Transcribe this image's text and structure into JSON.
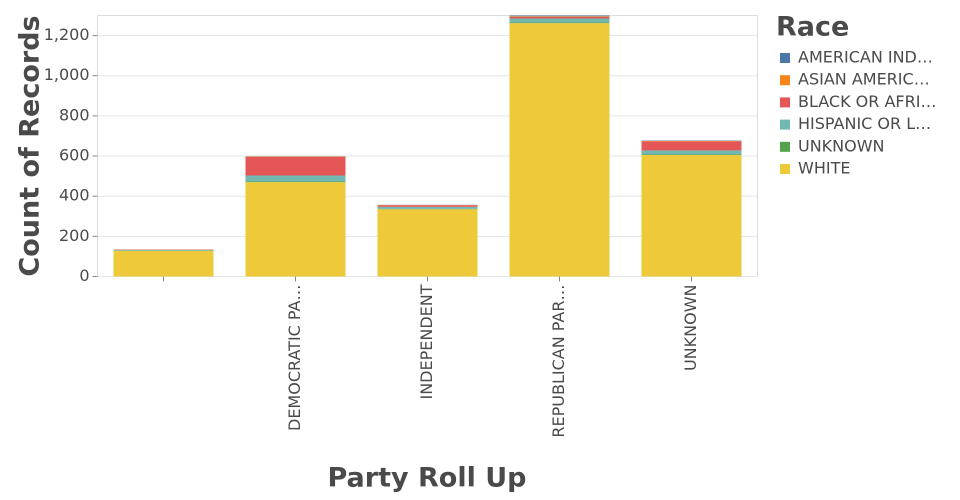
{
  "chart_data": {
    "type": "stacked_bar",
    "x_label": "Party Roll Up",
    "y_label": "Count of Records",
    "legend_title": "Race",
    "categories": [
      null,
      "DEMOCRATIC PA…",
      "INDEPENDENT",
      "REPUBLICAN PAR…",
      "UNKNOWN"
    ],
    "series": [
      {
        "name": "AMERICAN IND…",
        "color": "#4c78a8",
        "values": [
          0,
          1,
          1,
          4,
          2
        ]
      },
      {
        "name": "ASIAN AMERIC…",
        "color": "#f58518",
        "values": [
          0,
          2,
          1,
          3,
          2
        ]
      },
      {
        "name": "BLACK OR AFRI…",
        "color": "#e45756",
        "values": [
          2,
          93,
          8,
          8,
          45
        ]
      },
      {
        "name": "HISPANIC OR L…",
        "color": "#72b7b2",
        "values": [
          4,
          30,
          10,
          20,
          20
        ]
      },
      {
        "name": "UNKNOWN",
        "color": "#54a24b",
        "values": [
          1,
          3,
          2,
          3,
          3
        ]
      },
      {
        "name": "WHITE",
        "color": "#eeca3b",
        "values": [
          128,
          470,
          335,
          1262,
          605
        ]
      }
    ],
    "ylim": [
      0,
      1300
    ],
    "yticks": [
      0,
      200,
      400,
      600,
      800,
      {
        "value": 1000,
        "label": "1,000"
      },
      {
        "value": 1200,
        "label": "1,200"
      }
    ],
    "grid": true
  }
}
